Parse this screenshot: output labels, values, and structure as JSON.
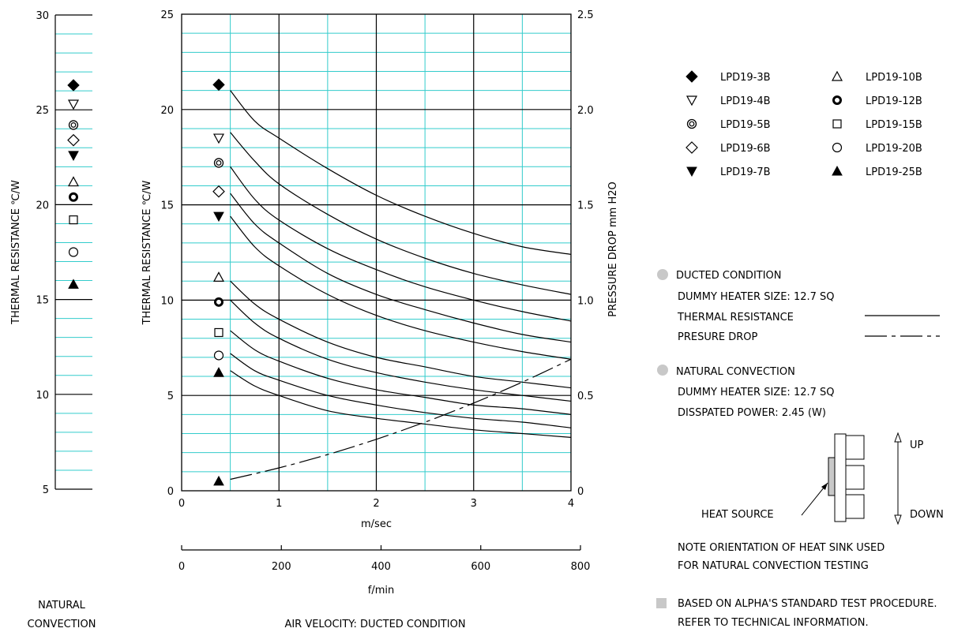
{
  "chart_data": [
    {
      "type": "scatter",
      "panel": "natural_convection",
      "ylabel": "THERMAL RESISTANCE  ℃/W",
      "xlabel_lines": [
        "NATURAL",
        "CONVECTION"
      ],
      "ylim": [
        5,
        30
      ],
      "yticks": [
        5,
        10,
        15,
        20,
        25,
        30
      ],
      "points": [
        {
          "marker": "filled-diamond",
          "value": 26.3
        },
        {
          "marker": "open-triangle-down",
          "value": 25.3
        },
        {
          "marker": "double-circle",
          "value": 24.2
        },
        {
          "marker": "open-diamond",
          "value": 23.4
        },
        {
          "marker": "filled-triangle-down",
          "value": 22.6
        },
        {
          "marker": "open-triangle-up",
          "value": 21.2
        },
        {
          "marker": "bold-circle",
          "value": 20.4
        },
        {
          "marker": "open-square",
          "value": 19.2
        },
        {
          "marker": "open-circle",
          "value": 17.5
        },
        {
          "marker": "filled-triangle-up",
          "value": 15.8
        }
      ]
    },
    {
      "type": "line",
      "panel": "ducted_condition",
      "xlabel": "m/sec",
      "xlabel2": "f/min",
      "ylabel": "THERMAL RESISTANCE  ℃/W",
      "y2label": "PRESSURE  DROP   mm H2O",
      "caption": "AIR VELOCITY:  DUCTED CONDITION",
      "xlim": [
        0,
        4
      ],
      "ylim": [
        0,
        25
      ],
      "y2lim": [
        0,
        2.5
      ],
      "xticks": [
        "0",
        "1",
        "2",
        "3",
        "4"
      ],
      "x2ticks": [
        "0",
        "200",
        "400",
        "600",
        "800"
      ],
      "yticks": [
        "0",
        "5",
        "10",
        "15",
        "20",
        "25"
      ],
      "y2ticks": [
        "0",
        "0.5",
        "1.0",
        "1.5",
        "2.0",
        "2.5"
      ],
      "x": [
        0.5,
        0.75,
        1,
        1.5,
        2,
        2.5,
        3,
        3.5,
        4
      ],
      "series": [
        {
          "values": [
            21.0,
            19.4,
            18.5,
            16.9,
            15.5,
            14.4,
            13.5,
            12.8,
            12.4
          ]
        },
        {
          "values": [
            18.8,
            17.3,
            16.1,
            14.5,
            13.2,
            12.2,
            11.4,
            10.8,
            10.3
          ]
        },
        {
          "values": [
            17.0,
            15.3,
            14.2,
            12.7,
            11.6,
            10.7,
            10.0,
            9.4,
            8.9
          ]
        },
        {
          "values": [
            15.6,
            14.0,
            13.0,
            11.4,
            10.3,
            9.5,
            8.8,
            8.2,
            7.8
          ]
        },
        {
          "values": [
            14.4,
            12.8,
            11.8,
            10.3,
            9.2,
            8.4,
            7.8,
            7.3,
            6.9
          ]
        },
        {
          "values": [
            11.0,
            9.8,
            9.0,
            7.8,
            7.0,
            6.5,
            6.0,
            5.7,
            5.4
          ]
        },
        {
          "values": [
            10.0,
            8.8,
            8.0,
            6.9,
            6.2,
            5.7,
            5.3,
            5.0,
            4.7
          ]
        },
        {
          "values": [
            8.4,
            7.4,
            6.8,
            5.9,
            5.3,
            4.9,
            4.5,
            4.3,
            4.0
          ]
        },
        {
          "values": [
            7.2,
            6.3,
            5.8,
            5.0,
            4.5,
            4.1,
            3.8,
            3.6,
            3.3
          ]
        },
        {
          "values": [
            6.3,
            5.5,
            5.0,
            4.2,
            3.8,
            3.5,
            3.2,
            3.0,
            2.8
          ]
        }
      ],
      "start_markers": [
        {
          "marker": "filled-diamond",
          "value": 21.3
        },
        {
          "marker": "open-triangle-down",
          "value": 18.5
        },
        {
          "marker": "double-circle",
          "value": 17.2
        },
        {
          "marker": "open-diamond",
          "value": 15.7
        },
        {
          "marker": "filled-triangle-down",
          "value": 14.4
        },
        {
          "marker": "open-triangle-up",
          "value": 11.2
        },
        {
          "marker": "bold-circle",
          "value": 9.9
        },
        {
          "marker": "open-square",
          "value": 8.3
        },
        {
          "marker": "open-circle",
          "value": 7.1
        },
        {
          "marker": "filled-triangle-up",
          "value": 6.2
        }
      ],
      "pressure_drop": {
        "x": [
          0.5,
          1,
          1.5,
          2,
          2.5,
          3,
          3.5,
          4
        ],
        "values": [
          0.06,
          0.12,
          0.19,
          0.27,
          0.36,
          0.46,
          0.57,
          0.69
        ]
      }
    }
  ],
  "legend": {
    "entries": [
      {
        "marker": "filled-diamond",
        "label": "LPD19-3B"
      },
      {
        "marker": "open-triangle-down",
        "label": "LPD19-4B"
      },
      {
        "marker": "double-circle",
        "label": "LPD19-5B"
      },
      {
        "marker": "open-diamond",
        "label": "LPD19-6B"
      },
      {
        "marker": "filled-triangle-down",
        "label": "LPD19-7B"
      },
      {
        "marker": "open-triangle-up",
        "label": "LPD19-10B"
      },
      {
        "marker": "bold-circle",
        "label": "LPD19-12B"
      },
      {
        "marker": "open-square",
        "label": "LPD19-15B"
      },
      {
        "marker": "open-circle",
        "label": "LPD19-20B"
      },
      {
        "marker": "filled-triangle-up",
        "label": "LPD19-25B"
      }
    ]
  },
  "notes": {
    "ducted_title": "DUCTED CONDITION",
    "ducted_heater": "DUMMY HEATER SIZE: 12.7 SQ",
    "thermal_resistance": "THERMAL RESISTANCE",
    "pressure_drop": "PRESURE DROP",
    "natural_title": "NATURAL CONVECTION",
    "natural_heater": "DUMMY HEATER SIZE: 12.7 SQ",
    "natural_power": "DISSPATED POWER: 2.45 (W)",
    "up": "UP",
    "down": "DOWN",
    "heat_source": "HEAT SOURCE",
    "orientation_1": "NOTE ORIENTATION OF HEAT SINK USED",
    "orientation_2": "FOR NATURAL CONVECTION TESTING",
    "based_1": "BASED ON ALPHA'S STANDARD TEST PROCEDURE.",
    "based_2": "REFER TO TECHNICAL INFORMATION."
  },
  "colors": {
    "minor_grid": "#33cccc",
    "major_grid": "#000000",
    "note_bullet": "#c8c8c8"
  }
}
